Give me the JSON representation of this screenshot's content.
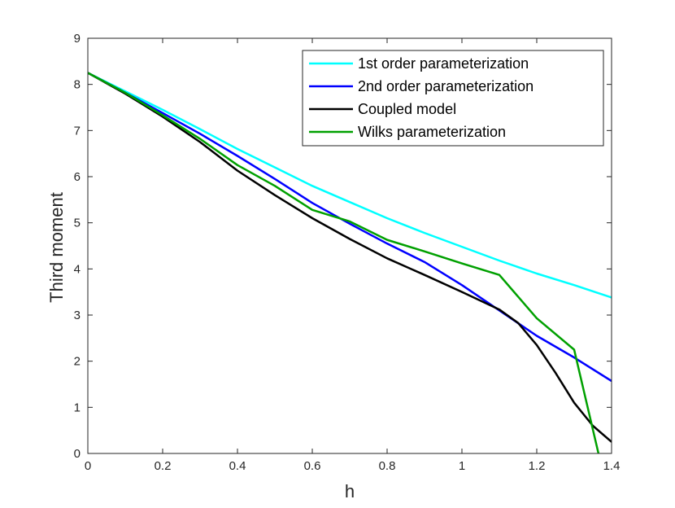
{
  "chart_data": {
    "type": "line",
    "xlabel": "h",
    "ylabel": "Third moment",
    "xlim": [
      0,
      1.4
    ],
    "ylim": [
      0,
      9
    ],
    "xticks": [
      "0",
      "0.2",
      "0.4",
      "0.6",
      "0.8",
      "1",
      "1.2",
      "1.4"
    ],
    "yticks": [
      "0",
      "1",
      "2",
      "3",
      "4",
      "5",
      "6",
      "7",
      "8",
      "9"
    ],
    "grid": false,
    "legend_position": "top-right",
    "series": [
      {
        "name": "1st order parameterization",
        "color": "#00ffff",
        "x": [
          0,
          0.1,
          0.2,
          0.3,
          0.4,
          0.5,
          0.6,
          0.7,
          0.8,
          0.9,
          1.0,
          1.1,
          1.2,
          1.3,
          1.4
        ],
        "y": [
          8.25,
          7.85,
          7.45,
          7.03,
          6.6,
          6.2,
          5.8,
          5.45,
          5.1,
          4.78,
          4.48,
          4.18,
          3.9,
          3.65,
          3.38
        ]
      },
      {
        "name": "2nd order parameterization",
        "color": "#0000ff",
        "x": [
          0,
          0.1,
          0.2,
          0.3,
          0.4,
          0.5,
          0.6,
          0.7,
          0.8,
          0.9,
          1.0,
          1.1,
          1.2,
          1.3,
          1.4
        ],
        "y": [
          8.25,
          7.82,
          7.38,
          6.93,
          6.45,
          5.95,
          5.43,
          4.98,
          4.55,
          4.15,
          3.65,
          3.1,
          2.55,
          2.08,
          1.57
        ]
      },
      {
        "name": "Coupled model",
        "color": "#000000",
        "x": [
          0,
          0.1,
          0.2,
          0.3,
          0.4,
          0.5,
          0.6,
          0.7,
          0.8,
          0.9,
          1.0,
          1.1,
          1.15,
          1.2,
          1.25,
          1.3,
          1.35,
          1.4
        ],
        "y": [
          8.25,
          7.8,
          7.3,
          6.75,
          6.13,
          5.6,
          5.1,
          4.65,
          4.23,
          3.87,
          3.5,
          3.12,
          2.83,
          2.35,
          1.75,
          1.1,
          0.6,
          0.25
        ]
      },
      {
        "name": "Wilks parameterization",
        "color": "#00a000",
        "x": [
          0,
          0.1,
          0.2,
          0.3,
          0.4,
          0.5,
          0.6,
          0.7,
          0.8,
          0.9,
          1.0,
          1.1,
          1.2,
          1.3,
          1.365
        ],
        "y": [
          8.25,
          7.82,
          7.33,
          6.82,
          6.25,
          5.8,
          5.28,
          5.03,
          4.63,
          4.38,
          4.12,
          3.87,
          2.93,
          2.25,
          0
        ]
      }
    ]
  }
}
